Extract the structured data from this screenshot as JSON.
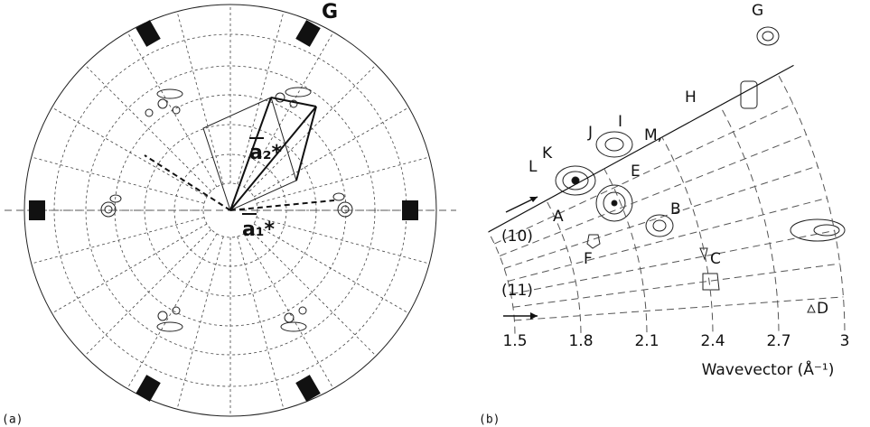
{
  "panel_a": {
    "label": "(a)",
    "point_label": "G",
    "vector_1": "a₁*",
    "vector_2": "a₂*"
  },
  "panel_b": {
    "label": "(b)",
    "peaks": [
      "G",
      "H",
      "I",
      "J",
      "M,",
      "K",
      "L",
      "E",
      "A",
      "B",
      "F",
      "C",
      "D"
    ],
    "directions": [
      "(10)",
      "(11)"
    ],
    "x_ticks": [
      1.5,
      1.8,
      2.1,
      2.4,
      2.7,
      3.0
    ],
    "x_label": "Wavevector (Å⁻¹)"
  }
}
